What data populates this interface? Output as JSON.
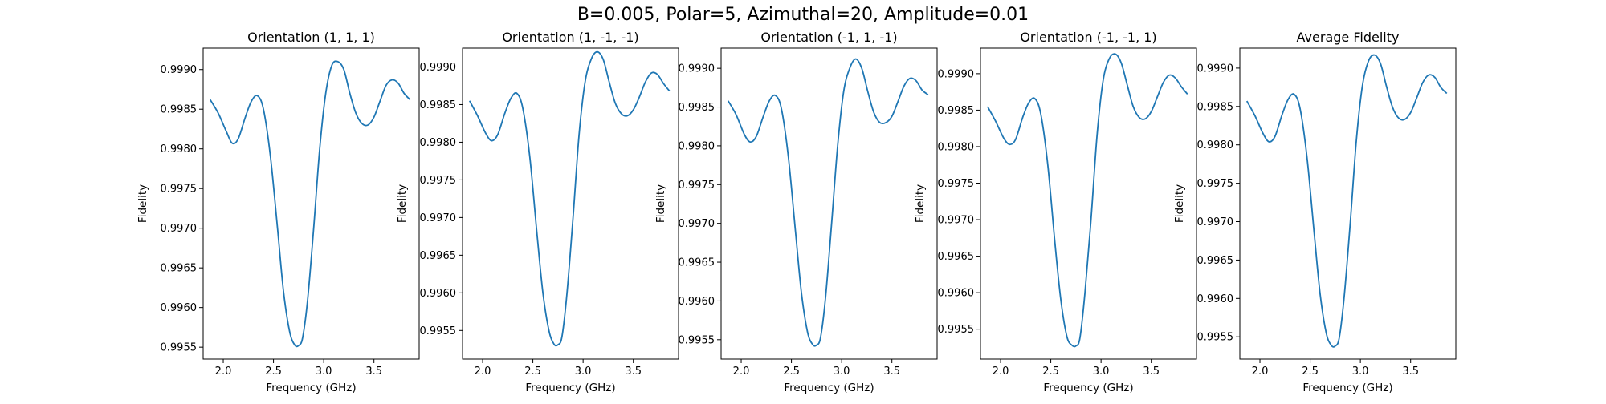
{
  "figure": {
    "title": "B=0.005, Polar=5, Azimuthal=20, Amplitude=0.01",
    "line_color": "#1f77b4"
  },
  "chart_data": [
    {
      "type": "line",
      "title": "Orientation (1, 1, 1)",
      "xlabel": "Frequency (GHz)",
      "ylabel": "Fidelity",
      "xlim": [
        1.8,
        3.95
      ],
      "ylim": [
        0.99535,
        0.99927
      ],
      "xticks": [
        "2.0",
        "2.5",
        "3.0",
        "3.5"
      ],
      "yticks": [
        "0.9955",
        "0.9960",
        "0.9965",
        "0.9970",
        "0.9975",
        "0.9980",
        "0.9985",
        "0.9990"
      ],
      "grid": false,
      "series": [
        {
          "x": [
            1.87,
            1.95,
            2.03,
            2.09,
            2.15,
            2.22,
            2.28,
            2.34,
            2.4,
            2.47,
            2.54,
            2.6,
            2.66,
            2.71,
            2.75,
            2.79,
            2.84,
            2.9,
            2.96,
            3.02,
            3.08,
            3.14,
            3.2,
            3.26,
            3.32,
            3.38,
            3.44,
            3.5,
            3.56,
            3.62,
            3.68,
            3.74,
            3.8,
            3.86
          ],
          "y": [
            0.99862,
            0.99845,
            0.99822,
            0.99807,
            0.99813,
            0.9984,
            0.9986,
            0.99867,
            0.9985,
            0.9979,
            0.997,
            0.9962,
            0.9957,
            0.99553,
            0.99552,
            0.99562,
            0.9961,
            0.997,
            0.998,
            0.9987,
            0.99905,
            0.9991,
            0.999,
            0.9987,
            0.99845,
            0.99832,
            0.9983,
            0.9984,
            0.9986,
            0.9988,
            0.99887,
            0.99883,
            0.9987,
            0.99862
          ]
        }
      ]
    },
    {
      "type": "line",
      "title": "Orientation (1, -1, -1)",
      "xlabel": "Frequency (GHz)",
      "ylabel": "Fidelity",
      "xlim": [
        1.8,
        3.95
      ],
      "ylim": [
        0.99512,
        0.99925
      ],
      "xticks": [
        "2.0",
        "2.5",
        "3.0",
        "3.5"
      ],
      "yticks": [
        "0.9955",
        "0.9960",
        "0.9965",
        "0.9970",
        "0.9975",
        "0.9980",
        "0.9985",
        "0.9990"
      ],
      "grid": false,
      "series": [
        {
          "x": [
            1.87,
            1.95,
            2.03,
            2.09,
            2.15,
            2.22,
            2.28,
            2.34,
            2.4,
            2.47,
            2.54,
            2.6,
            2.66,
            2.71,
            2.75,
            2.79,
            2.84,
            2.9,
            2.96,
            3.02,
            3.08,
            3.14,
            3.2,
            3.26,
            3.32,
            3.38,
            3.44,
            3.5,
            3.56,
            3.62,
            3.68,
            3.74,
            3.8,
            3.86
          ],
          "y": [
            0.99855,
            0.99835,
            0.99812,
            0.99802,
            0.9981,
            0.99838,
            0.99858,
            0.99865,
            0.99845,
            0.9978,
            0.9968,
            0.996,
            0.9955,
            0.99532,
            0.99531,
            0.99542,
            0.996,
            0.997,
            0.9981,
            0.9988,
            0.9991,
            0.9992,
            0.9991,
            0.9988,
            0.99852,
            0.99838,
            0.99835,
            0.99843,
            0.9986,
            0.9988,
            0.99892,
            0.9989,
            0.99878,
            0.99868
          ]
        }
      ]
    },
    {
      "type": "line",
      "title": "Orientation (-1, 1, -1)",
      "xlabel": "Frequency (GHz)",
      "ylabel": "Fidelity",
      "xlim": [
        1.8,
        3.95
      ],
      "ylim": [
        0.99525,
        0.99926
      ],
      "xticks": [
        "2.0",
        "2.5",
        "3.0",
        "3.5"
      ],
      "yticks": [
        "0.9955",
        "0.9960",
        "0.9965",
        "0.9970",
        "0.9975",
        "0.9980",
        "0.9985",
        "0.9990"
      ],
      "grid": false,
      "series": [
        {
          "x": [
            1.87,
            1.95,
            2.03,
            2.09,
            2.15,
            2.22,
            2.28,
            2.34,
            2.4,
            2.47,
            2.54,
            2.6,
            2.66,
            2.71,
            2.75,
            2.79,
            2.84,
            2.9,
            2.96,
            3.02,
            3.08,
            3.14,
            3.2,
            3.26,
            3.32,
            3.38,
            3.44,
            3.5,
            3.56,
            3.62,
            3.68,
            3.74,
            3.8,
            3.86
          ],
          "y": [
            0.99858,
            0.9984,
            0.99815,
            0.99805,
            0.99812,
            0.99838,
            0.99858,
            0.99865,
            0.99848,
            0.99785,
            0.9969,
            0.9961,
            0.9956,
            0.99544,
            0.99543,
            0.99553,
            0.99605,
            0.997,
            0.998,
            0.9987,
            0.999,
            0.99912,
            0.999,
            0.9987,
            0.99843,
            0.9983,
            0.9983,
            0.99838,
            0.99857,
            0.99877,
            0.99887,
            0.99884,
            0.99872,
            0.99866
          ]
        }
      ]
    },
    {
      "type": "line",
      "title": "Orientation (-1, -1, 1)",
      "xlabel": "Frequency (GHz)",
      "ylabel": "Fidelity",
      "xlim": [
        1.8,
        3.95
      ],
      "ylim": [
        0.99509,
        0.99935
      ],
      "xticks": [
        "2.0",
        "2.5",
        "3.0",
        "3.5"
      ],
      "yticks": [
        "0.9955",
        "0.9960",
        "0.9965",
        "0.9970",
        "0.9975",
        "0.9980",
        "0.9985",
        "0.9990"
      ],
      "grid": false,
      "series": [
        {
          "x": [
            1.87,
            1.95,
            2.03,
            2.09,
            2.15,
            2.22,
            2.28,
            2.34,
            2.4,
            2.47,
            2.54,
            2.6,
            2.66,
            2.71,
            2.75,
            2.79,
            2.84,
            2.9,
            2.96,
            3.02,
            3.08,
            3.14,
            3.2,
            3.26,
            3.32,
            3.38,
            3.44,
            3.5,
            3.56,
            3.62,
            3.68,
            3.74,
            3.8,
            3.86
          ],
          "y": [
            0.99855,
            0.99835,
            0.99812,
            0.99803,
            0.9981,
            0.9984,
            0.9986,
            0.99866,
            0.99845,
            0.99775,
            0.9967,
            0.9959,
            0.9954,
            0.99528,
            0.99527,
            0.99538,
            0.996,
            0.997,
            0.99815,
            0.9989,
            0.9992,
            0.99927,
            0.99915,
            0.99885,
            0.99855,
            0.9984,
            0.99838,
            0.99848,
            0.99868,
            0.99888,
            0.99898,
            0.99894,
            0.99882,
            0.99872
          ]
        }
      ]
    },
    {
      "type": "line",
      "title": "Average Fidelity",
      "xlabel": "Frequency (GHz)",
      "ylabel": "Fidelity",
      "xlim": [
        1.8,
        3.95
      ],
      "ylim": [
        0.99521,
        0.99926
      ],
      "xticks": [
        "2.0",
        "2.5",
        "3.0",
        "3.5"
      ],
      "yticks": [
        "0.9955",
        "0.9960",
        "0.9965",
        "0.9970",
        "0.9975",
        "0.9980",
        "0.9985",
        "0.9990"
      ],
      "grid": false,
      "series": [
        {
          "x": [
            1.87,
            1.95,
            2.03,
            2.09,
            2.15,
            2.22,
            2.28,
            2.34,
            2.4,
            2.47,
            2.54,
            2.6,
            2.66,
            2.71,
            2.75,
            2.79,
            2.84,
            2.9,
            2.96,
            3.02,
            3.08,
            3.14,
            3.2,
            3.26,
            3.32,
            3.38,
            3.44,
            3.5,
            3.56,
            3.62,
            3.68,
            3.74,
            3.8,
            3.86
          ],
          "y": [
            0.99857,
            0.99838,
            0.99815,
            0.99804,
            0.99811,
            0.99839,
            0.99859,
            0.99866,
            0.99847,
            0.99782,
            0.99685,
            0.99605,
            0.99555,
            0.99539,
            0.99538,
            0.99549,
            0.99604,
            0.997,
            0.99806,
            0.99877,
            0.99909,
            0.99917,
            0.99906,
            0.99876,
            0.99849,
            0.99835,
            0.99833,
            0.99842,
            0.99861,
            0.99881,
            0.99891,
            0.99888,
            0.99875,
            0.99867
          ]
        }
      ]
    }
  ]
}
